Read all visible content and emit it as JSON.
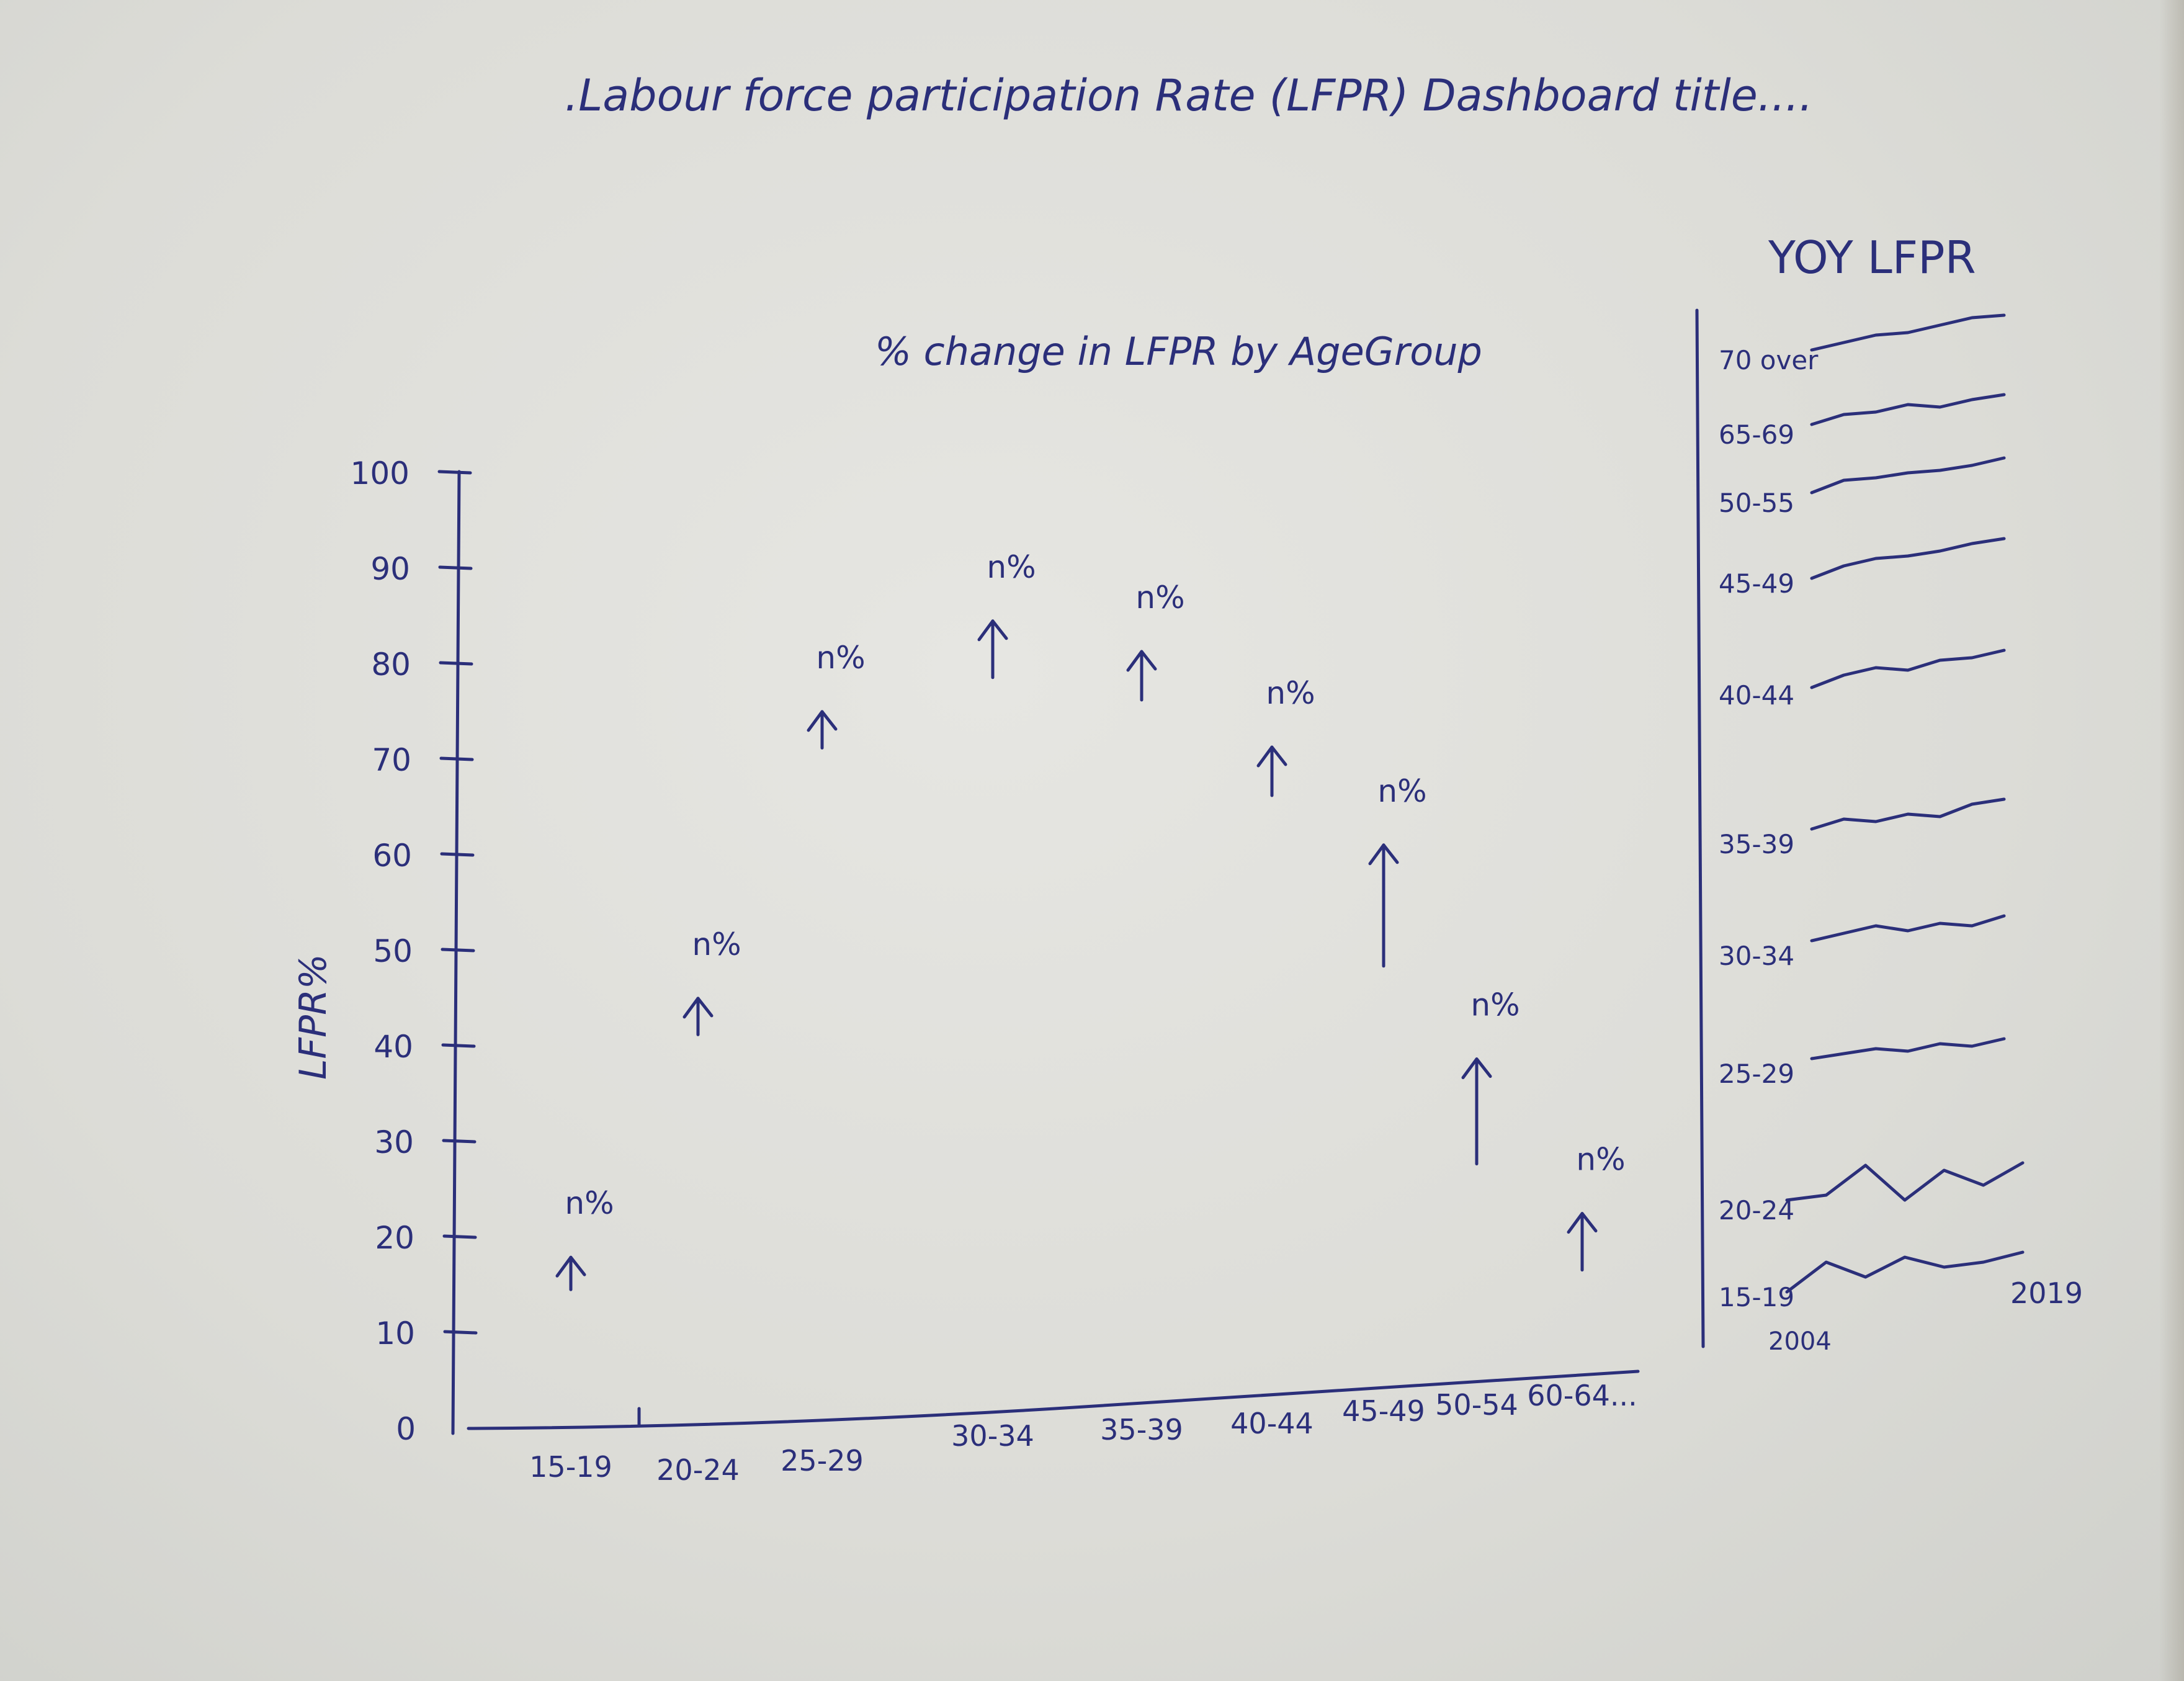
{
  "dashboard_title": ".Labour force participation Rate (LFPR) Dashboard title....",
  "chart_data": [
    {
      "type": "scatter",
      "title": "% change in LFPR by AgeGroup",
      "xlabel": "",
      "ylabel": "LFPR%",
      "ylim": [
        0,
        100
      ],
      "y_ticks": [
        "0",
        "10",
        "20",
        "30",
        "40",
        "50",
        "60",
        "70",
        "80",
        "90",
        "100"
      ],
      "categories": [
        "15-19",
        "20-24",
        "25-29",
        "30-34",
        "35-39",
        "40-44",
        "45-49",
        "50-54",
        "60-64..."
      ],
      "values": [
        17,
        44,
        74,
        83,
        80,
        70,
        58,
        36,
        21
      ],
      "point_label": "n%",
      "marker": "up-arrow"
    },
    {
      "type": "line",
      "title": "YOY LFPR",
      "x_start_label": "2004",
      "x_end_label": "2019",
      "series": [
        {
          "name": "70 over",
          "values": [
            0.2,
            0.35,
            0.5,
            0.55,
            0.7,
            0.85,
            0.9
          ]
        },
        {
          "name": "65-69",
          "values": [
            0.2,
            0.4,
            0.45,
            0.6,
            0.55,
            0.7,
            0.8
          ]
        },
        {
          "name": "50-55",
          "values": [
            0.2,
            0.45,
            0.5,
            0.6,
            0.65,
            0.75,
            0.9
          ]
        },
        {
          "name": "45-49",
          "values": [
            0.1,
            0.35,
            0.5,
            0.55,
            0.65,
            0.8,
            0.9
          ]
        },
        {
          "name": "40-44",
          "values": [
            0.15,
            0.4,
            0.55,
            0.5,
            0.7,
            0.75,
            0.9
          ]
        },
        {
          "name": "35-39",
          "values": [
            0.3,
            0.5,
            0.45,
            0.6,
            0.55,
            0.8,
            0.9
          ]
        },
        {
          "name": "30-34",
          "values": [
            0.3,
            0.45,
            0.6,
            0.5,
            0.65,
            0.6,
            0.8
          ]
        },
        {
          "name": "25-29",
          "values": [
            0.3,
            0.4,
            0.5,
            0.45,
            0.6,
            0.55,
            0.7
          ]
        },
        {
          "name": "20-24",
          "values": [
            0.2,
            0.3,
            0.9,
            0.2,
            0.8,
            0.5,
            0.95
          ]
        },
        {
          "name": "15-19",
          "values": [
            0.1,
            0.7,
            0.4,
            0.8,
            0.6,
            0.7,
            0.9
          ]
        }
      ]
    }
  ]
}
